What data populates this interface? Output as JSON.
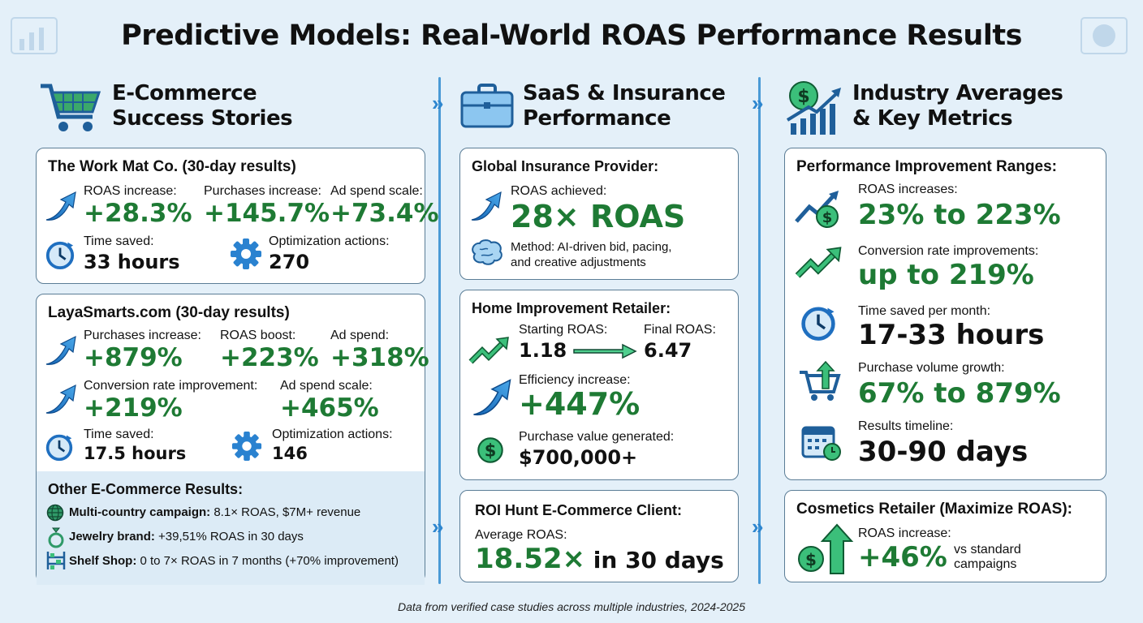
{
  "title": "Predictive Models: Real-World ROAS Performance Results",
  "colors": {
    "green": "#1e7a34",
    "blue": "#1f6fc0",
    "background": "#e4f0f9"
  },
  "columns": {
    "ecommerce": {
      "header": [
        "E-Commerce",
        "Success Stories"
      ],
      "icon": "shopping-cart-icon",
      "workmat": {
        "title": "The Work Mat Co. (30-day results)",
        "metrics": [
          {
            "label": "ROAS increase:",
            "value": "+28.3%"
          },
          {
            "label": "Purchases increase:",
            "value": "+145.7%"
          },
          {
            "label": "Ad spend scale:",
            "value": "+73.4%"
          }
        ],
        "time_label": "Time saved:",
        "time_value": "33 hours",
        "actions_label": "Optimization actions:",
        "actions_value": "270"
      },
      "laya": {
        "title": "LayaSmarts.com (30-day results)",
        "metrics": [
          {
            "label": "Purchases increase:",
            "value": "+879%"
          },
          {
            "label": "ROAS boost:",
            "value": "+223%"
          },
          {
            "label": "Ad spend:",
            "value": "+318%"
          },
          {
            "label": "Conversion rate improvement:",
            "value": "+219%"
          },
          {
            "label": "Ad spend scale:",
            "value": "+465%"
          }
        ],
        "time_label": "Time saved:",
        "time_value": "17.5 hours",
        "actions_label": "Optimization actions:",
        "actions_value": "146"
      },
      "other": {
        "title": "Other E-Commerce Results:",
        "items": [
          {
            "icon": "globe-icon",
            "name": "Multi-country campaign:",
            "text": " 8.1× ROAS, $7M+ revenue"
          },
          {
            "icon": "ring-icon",
            "name": "Jewelry brand:",
            "text": " +39,51% ROAS in 30 days"
          },
          {
            "icon": "shelf-icon",
            "name": "Shelf Shop:",
            "text": " 0 to 7× ROAS in 7 months (+70% improvement)"
          }
        ]
      }
    },
    "saas": {
      "header": [
        "SaaS & Insurance",
        "Performance"
      ],
      "icon": "briefcase-icon",
      "insurance": {
        "title": "Global Insurance Provider:",
        "label": "ROAS achieved:",
        "value": "28× ROAS",
        "method": [
          "Method: AI-driven bid, pacing,",
          "and creative adjustments"
        ]
      },
      "home": {
        "title": "Home Improvement Retailer:",
        "start_label": "Starting ROAS:",
        "start_value": "1.18",
        "final_label": "Final ROAS:",
        "final_value": "6.47",
        "eff_label": "Efficiency increase:",
        "eff_value": "+447%",
        "pv_label": "Purchase value generated:",
        "pv_value": "$700,000+"
      },
      "roi": {
        "title": "ROI Hunt E-Commerce Client:",
        "label": "Average ROAS:",
        "value": "18.52×",
        "suffix": " in 30 days"
      }
    },
    "industry": {
      "header": [
        "Industry Averages",
        "& Key Metrics"
      ],
      "icon": "dollar-growth-chart-icon",
      "ranges": {
        "title": "Performance Improvement Ranges:",
        "items": [
          {
            "icon": "dollar-trend-icon",
            "label": "ROAS increases:",
            "value": "23% to 223%"
          },
          {
            "icon": "trend-up-icon",
            "label": "Conversion rate improvements:",
            "value": "up to 219%"
          },
          {
            "icon": "clock-icon",
            "label": "Time saved per month:",
            "value": "17-33 hours"
          },
          {
            "icon": "cart-up-icon",
            "label": "Purchase volume growth:",
            "value": "67% to 879%"
          },
          {
            "icon": "calendar-icon",
            "label": "Results timeline:",
            "value": "30-90 days"
          }
        ]
      },
      "cosmetics": {
        "title": "Cosmetics Retailer (Maximize ROAS):",
        "label": "ROAS increase:",
        "value": "+46%",
        "note": "vs standard campaigns"
      }
    }
  },
  "footer": "Data from verified case studies across multiple industries, 2024-2025"
}
